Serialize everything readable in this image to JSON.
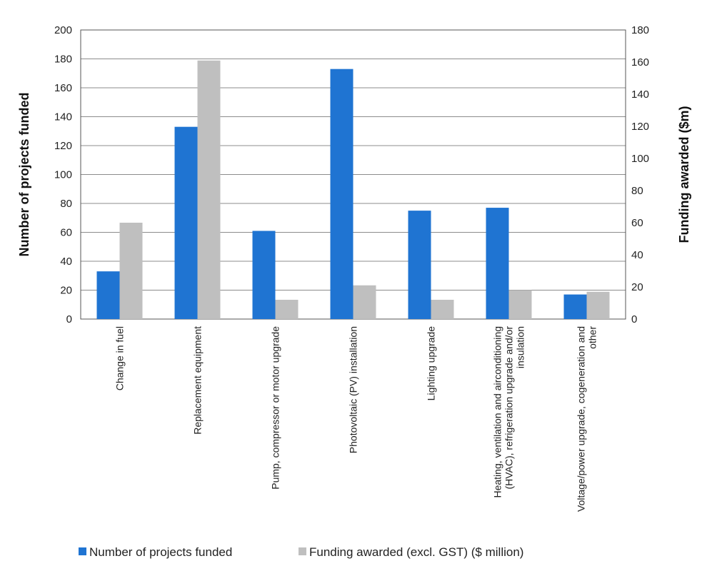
{
  "chart_data": {
    "type": "bar",
    "categories": [
      [
        "Change in fuel"
      ],
      [
        "Replacement equipment"
      ],
      [
        "Pump, compressor or motor upgrade"
      ],
      [
        "Photovoltaic (PV) installation"
      ],
      [
        "Lighting upgrade"
      ],
      [
        "Heating, ventilation and airconditioning",
        "(HVAC), refrigeration upgrade and/or",
        "insulation"
      ],
      [
        "Voltage/power upgrade, cogeneration and",
        "other"
      ]
    ],
    "series": [
      {
        "name": "Number of projects funded",
        "axis": "left",
        "color": "#1f74d2",
        "values": [
          33,
          133,
          61,
          173,
          75,
          77,
          17
        ]
      },
      {
        "name": "Funding awarded (excl. GST) ($ million)",
        "axis": "right",
        "color": "#bfbfbf",
        "values": [
          60,
          161,
          12,
          21,
          12,
          18,
          17
        ]
      }
    ],
    "ylabel": "Number of projects funded",
    "ylabel_right": "Funding awarded ($m)",
    "ylim": [
      0,
      200
    ],
    "yticks": [
      0,
      20,
      40,
      60,
      80,
      100,
      120,
      140,
      160,
      180,
      200
    ],
    "ylim_right": [
      0,
      180
    ],
    "yticks_right": [
      0,
      20,
      40,
      60,
      80,
      100,
      120,
      140,
      160,
      180
    ],
    "grid": true,
    "legend": "bottom"
  }
}
